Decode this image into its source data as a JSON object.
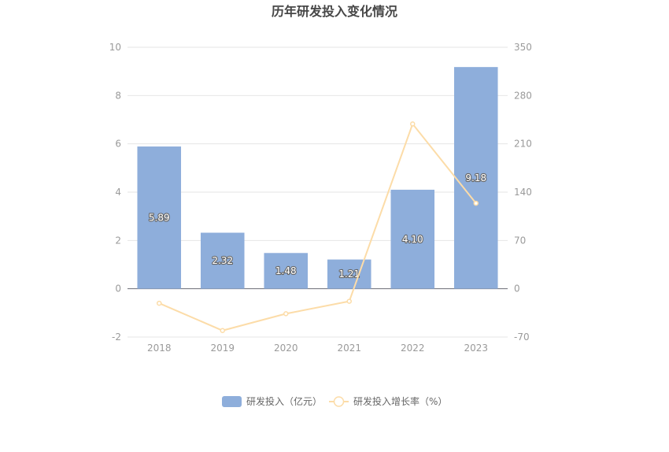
{
  "colors": {
    "bar": "#8eaedb",
    "line": "#fcdca8",
    "grid": "#e6e6e6",
    "axis": "#6e7079"
  },
  "chart_data": {
    "type": "bar",
    "title": "历年研发投入变化情况",
    "categories": [
      "2018",
      "2019",
      "2020",
      "2021",
      "2022",
      "2023"
    ],
    "series": [
      {
        "name": "研发投入（亿元）",
        "type": "bar",
        "axis": "left",
        "values": [
          5.89,
          2.32,
          1.48,
          1.21,
          4.1,
          9.18
        ],
        "labels": [
          "5.89",
          "2.32",
          "1.48",
          "1.21",
          "4.10",
          "9.18"
        ]
      },
      {
        "name": "研发投入增长率（%）",
        "type": "line",
        "axis": "right",
        "values": [
          -21,
          -60.6,
          -36.2,
          -18.2,
          238.8,
          123.9
        ]
      }
    ],
    "y_left": {
      "min": -2,
      "max": 10,
      "ticks": [
        "-2",
        "0",
        "2",
        "4",
        "6",
        "8",
        "10"
      ]
    },
    "y_right": {
      "min": -70,
      "max": 350,
      "ticks": [
        "-70",
        "0",
        "70",
        "140",
        "210",
        "280",
        "350"
      ]
    },
    "grid": true,
    "legend": "bottom-center"
  }
}
